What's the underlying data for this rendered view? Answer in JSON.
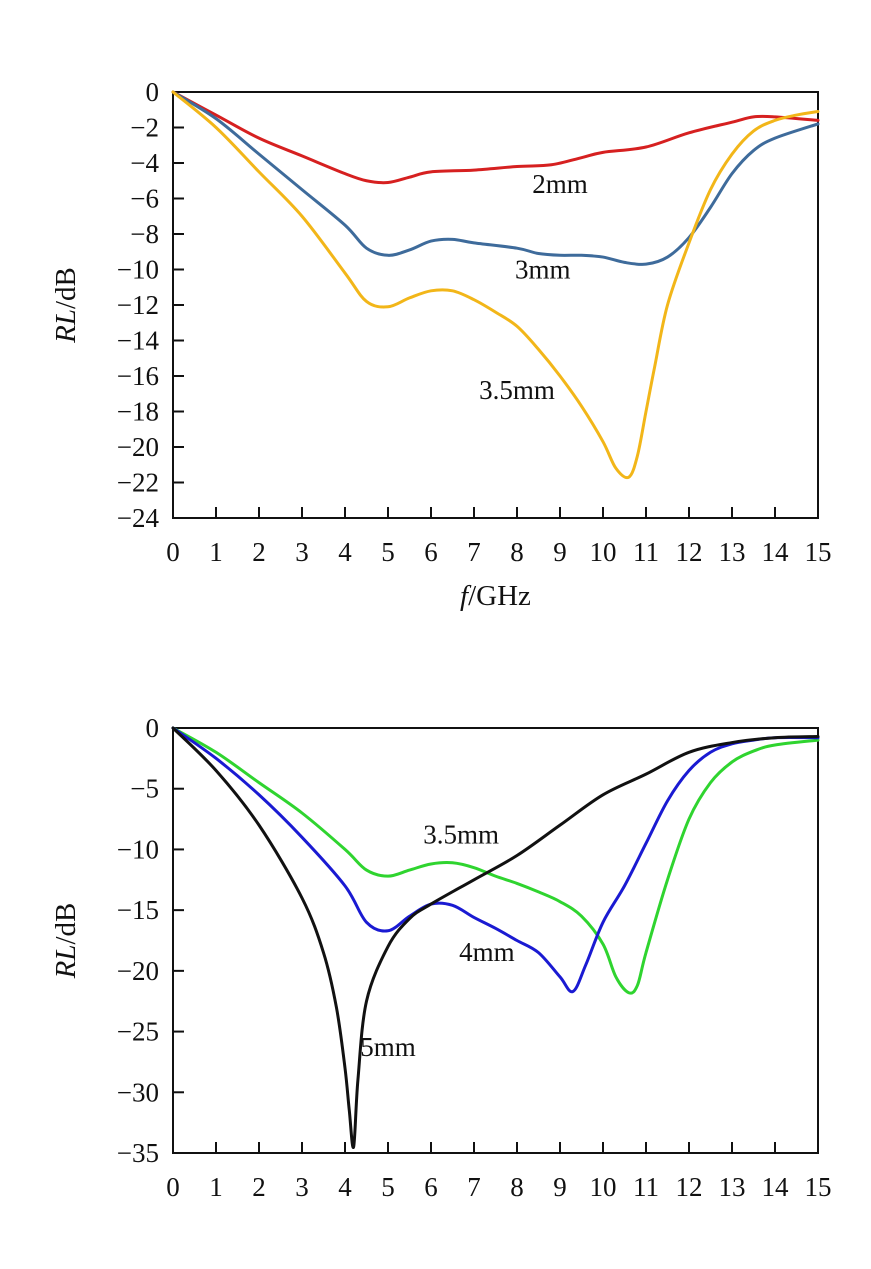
{
  "chart_data": [
    {
      "type": "line",
      "title": "",
      "xlabel": "f/GHz",
      "xlabel_parts": {
        "italic": "f",
        "rest": "/GHz"
      },
      "ylabel": "RL/dB",
      "ylabel_parts": {
        "italic": "RL",
        "rest": "/dB"
      },
      "xlim": [
        0,
        15
      ],
      "ylim": [
        -24,
        0
      ],
      "x_ticks": [
        "0",
        "1",
        "2",
        "3",
        "4",
        "5",
        "6",
        "7",
        "8",
        "9",
        "10",
        "11",
        "12",
        "13",
        "14",
        "15"
      ],
      "y_ticks": [
        "0",
        "−2",
        "−4",
        "−6",
        "−8",
        "−10",
        "−12",
        "−14",
        "−16",
        "−18",
        "−20",
        "−22",
        "−24"
      ],
      "y_tick_values": [
        0,
        -2,
        -4,
        -6,
        -8,
        -10,
        -12,
        -14,
        -16,
        -18,
        -20,
        -22,
        -24
      ],
      "grid": false,
      "series": [
        {
          "name": "2mm",
          "color": "#d62020",
          "label_at": [
            9.0,
            -5.7
          ],
          "x": [
            0,
            1,
            2,
            3,
            4,
            4.5,
            5,
            5.5,
            6,
            7,
            8,
            8.8,
            9.5,
            10,
            11,
            12,
            13,
            13.5,
            14,
            15
          ],
          "y": [
            0,
            -1.3,
            -2.6,
            -3.6,
            -4.6,
            -5.0,
            -5.1,
            -4.8,
            -4.5,
            -4.4,
            -4.2,
            -4.1,
            -3.7,
            -3.4,
            -3.1,
            -2.3,
            -1.7,
            -1.4,
            -1.4,
            -1.6
          ]
        },
        {
          "name": "3mm",
          "color": "#3e6b9b",
          "label_at": [
            8.6,
            -10.5
          ],
          "x": [
            0,
            1,
            2,
            3,
            4,
            4.5,
            5,
            5.5,
            6,
            6.5,
            7,
            8,
            8.5,
            9,
            9.5,
            10,
            10.5,
            11,
            11.5,
            12,
            12.5,
            13,
            13.5,
            14,
            15
          ],
          "y": [
            0,
            -1.5,
            -3.5,
            -5.5,
            -7.5,
            -8.8,
            -9.2,
            -8.9,
            -8.4,
            -8.3,
            -8.5,
            -8.8,
            -9.1,
            -9.2,
            -9.2,
            -9.3,
            -9.6,
            -9.7,
            -9.3,
            -8.2,
            -6.5,
            -4.6,
            -3.3,
            -2.6,
            -1.8
          ]
        },
        {
          "name": "3.5mm",
          "color": "#f2b619",
          "label_at": [
            8.0,
            -17.3
          ],
          "x": [
            0,
            1,
            2,
            3,
            4,
            4.5,
            5,
            5.5,
            6,
            6.5,
            7,
            7.5,
            8,
            8.5,
            9,
            9.5,
            10,
            10.3,
            10.6,
            10.8,
            11,
            11.2,
            11.5,
            12,
            12.5,
            13,
            13.5,
            14,
            14.5,
            15
          ],
          "y": [
            0,
            -2.0,
            -4.5,
            -7.0,
            -10.2,
            -11.8,
            -12.1,
            -11.6,
            -11.2,
            -11.2,
            -11.7,
            -12.4,
            -13.2,
            -14.5,
            -16.0,
            -17.7,
            -19.7,
            -21.2,
            -21.7,
            -20.5,
            -18.0,
            -15.5,
            -12.0,
            -8.5,
            -5.5,
            -3.5,
            -2.2,
            -1.6,
            -1.3,
            -1.1
          ]
        }
      ]
    },
    {
      "type": "line",
      "title": "",
      "xlabel": "",
      "ylabel": "RL/dB",
      "ylabel_parts": {
        "italic": "RL",
        "rest": "/dB"
      },
      "xlim": [
        0,
        15
      ],
      "ylim": [
        -35,
        0
      ],
      "x_ticks": [
        "0",
        "1",
        "2",
        "3",
        "4",
        "5",
        "6",
        "7",
        "8",
        "9",
        "10",
        "11",
        "12",
        "13",
        "14",
        "15"
      ],
      "y_ticks": [
        "0",
        "−5",
        "−10",
        "−15",
        "−20",
        "−25",
        "−30",
        "−35"
      ],
      "y_tick_values": [
        0,
        -5,
        -10,
        -15,
        -20,
        -25,
        -30,
        -35
      ],
      "grid": false,
      "series": [
        {
          "name": "3.5mm",
          "color": "#2fd42f",
          "label_at": [
            6.7,
            -9.5
          ],
          "x": [
            0,
            1,
            2,
            3,
            4,
            4.5,
            5,
            5.5,
            6,
            6.5,
            7,
            7.5,
            8,
            8.5,
            9,
            9.5,
            10,
            10.3,
            10.6,
            10.8,
            11,
            11.5,
            12,
            12.5,
            13,
            13.5,
            14,
            15
          ],
          "y": [
            0,
            -2.0,
            -4.5,
            -7.0,
            -10.0,
            -11.7,
            -12.2,
            -11.7,
            -11.2,
            -11.1,
            -11.5,
            -12.2,
            -12.8,
            -13.5,
            -14.3,
            -15.5,
            -17.8,
            -20.5,
            -21.8,
            -21.2,
            -18.5,
            -12.5,
            -7.5,
            -4.5,
            -2.8,
            -1.9,
            -1.4,
            -1.0
          ]
        },
        {
          "name": "4mm",
          "color": "#1a1ad2",
          "label_at": [
            7.3,
            -19.2
          ],
          "x": [
            0,
            1,
            2,
            3,
            4,
            4.5,
            5,
            5.5,
            6,
            6.5,
            7,
            7.5,
            8,
            8.5,
            9,
            9.3,
            9.6,
            10,
            10.5,
            11,
            11.5,
            12,
            12.5,
            13,
            13.5,
            14,
            15
          ],
          "y": [
            0,
            -2.5,
            -5.5,
            -9.0,
            -13.0,
            -16.0,
            -16.7,
            -15.5,
            -14.5,
            -14.6,
            -15.6,
            -16.5,
            -17.5,
            -18.5,
            -20.5,
            -21.7,
            -19.5,
            -16.0,
            -13.0,
            -9.5,
            -6.0,
            -3.5,
            -2.0,
            -1.3,
            -1.0,
            -0.8,
            -0.8
          ]
        },
        {
          "name": "5mm",
          "color": "#111111",
          "label_at": [
            5.0,
            -27.0
          ],
          "x": [
            0,
            1,
            2,
            3,
            3.5,
            3.8,
            4.0,
            4.1,
            4.2,
            4.3,
            4.5,
            5,
            5.5,
            6,
            7,
            8,
            9,
            10,
            11,
            12,
            13,
            14,
            15
          ],
          "y": [
            0,
            -3.5,
            -8.0,
            -14.0,
            -18.5,
            -23.0,
            -28.0,
            -31.5,
            -34.5,
            -29.0,
            -22.5,
            -18.0,
            -15.7,
            -14.5,
            -12.5,
            -10.5,
            -8.0,
            -5.5,
            -3.8,
            -2.0,
            -1.2,
            -0.8,
            -0.7
          ]
        }
      ]
    }
  ]
}
